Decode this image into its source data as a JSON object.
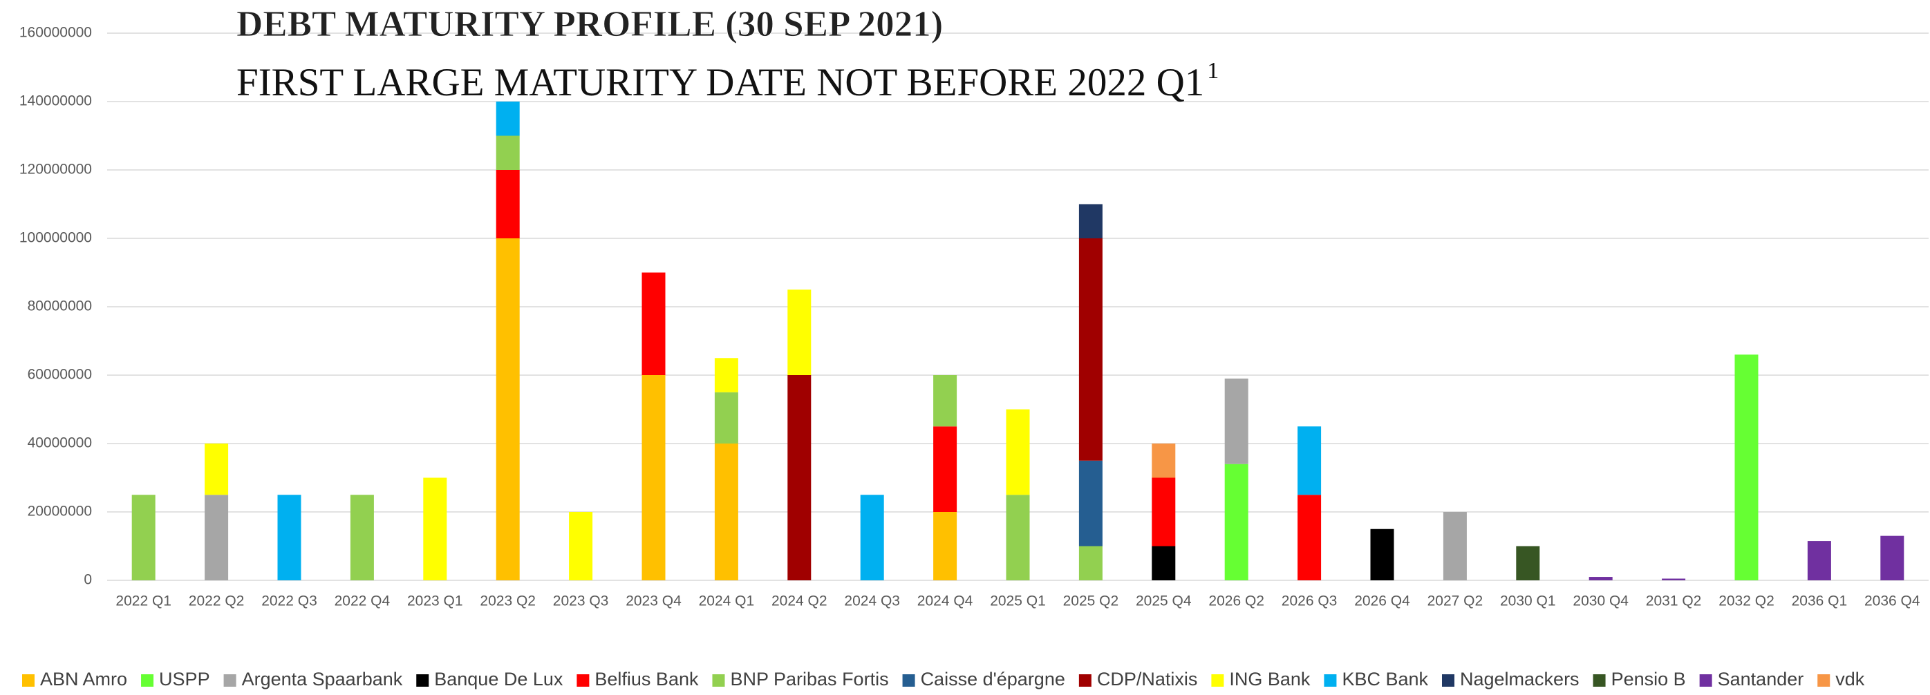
{
  "chart_data": {
    "type": "stacked_bar",
    "title": "DEBT MATURITY PROFILE (30 SEP 2021)",
    "subtitle": "FIRST LARGE MATURITY DATE NOT BEFORE 2022 Q1",
    "subtitle_superscript": "1",
    "categories": [
      "2022 Q1",
      "2022 Q2",
      "2022 Q3",
      "2022 Q4",
      "2023 Q1",
      "2023 Q2",
      "2023 Q3",
      "2023 Q4",
      "2024 Q1",
      "2024 Q2",
      "2024 Q3",
      "2024 Q4",
      "2025 Q1",
      "2025 Q2",
      "2025 Q4",
      "2026 Q2",
      "2026 Q3",
      "2026 Q4",
      "2027 Q2",
      "2030 Q1",
      "2030 Q4",
      "2031 Q2",
      "2032 Q2",
      "2036 Q1",
      "2036 Q4"
    ],
    "series": [
      {
        "name": "ABN Amro",
        "color": "#ffc000",
        "values": [
          null,
          null,
          null,
          null,
          null,
          100000000,
          null,
          60000000,
          40000000,
          null,
          null,
          20000000,
          null,
          null,
          null,
          null,
          null,
          null,
          null,
          null,
          null,
          null,
          null,
          null,
          null
        ]
      },
      {
        "name": "USPP",
        "color": "#66ff33",
        "values": [
          null,
          null,
          null,
          null,
          null,
          null,
          null,
          null,
          null,
          null,
          null,
          null,
          null,
          null,
          null,
          34000000,
          null,
          null,
          null,
          null,
          null,
          null,
          66000000,
          null,
          null
        ]
      },
      {
        "name": "Argenta Spaarbank",
        "color": "#a6a6a6",
        "values": [
          null,
          25000000,
          null,
          null,
          null,
          null,
          null,
          null,
          null,
          null,
          null,
          null,
          null,
          null,
          null,
          25000000,
          null,
          null,
          20000000,
          null,
          null,
          null,
          null,
          null,
          null
        ]
      },
      {
        "name": "Banque De Lux",
        "color": "#000000",
        "values": [
          null,
          null,
          null,
          null,
          null,
          null,
          null,
          null,
          null,
          null,
          null,
          null,
          null,
          null,
          10000000,
          null,
          null,
          15000000,
          null,
          null,
          null,
          null,
          null,
          null,
          null
        ]
      },
      {
        "name": "Belfius Bank",
        "color": "#ff0000",
        "values": [
          null,
          null,
          null,
          null,
          null,
          20000000,
          null,
          30000000,
          null,
          null,
          null,
          25000000,
          null,
          null,
          20000000,
          null,
          25000000,
          null,
          null,
          null,
          null,
          null,
          null,
          null,
          null
        ]
      },
      {
        "name": "BNP Paribas Fortis",
        "color": "#92d050",
        "values": [
          25000000,
          null,
          null,
          25000000,
          null,
          10000000,
          null,
          null,
          15000000,
          null,
          null,
          15000000,
          25000000,
          10000000,
          null,
          null,
          null,
          null,
          null,
          null,
          null,
          null,
          null,
          null,
          null
        ]
      },
      {
        "name": "Caisse d'épargne",
        "color": "#255e91",
        "values": [
          null,
          null,
          null,
          null,
          null,
          null,
          null,
          null,
          null,
          null,
          null,
          null,
          null,
          25000000,
          null,
          null,
          null,
          null,
          null,
          null,
          null,
          null,
          null,
          null,
          null
        ]
      },
      {
        "name": "CDP/Natixis",
        "color": "#a00000",
        "values": [
          null,
          null,
          null,
          null,
          null,
          null,
          null,
          null,
          null,
          60000000,
          null,
          null,
          null,
          65000000,
          null,
          null,
          null,
          null,
          null,
          null,
          null,
          null,
          null,
          null,
          null
        ]
      },
      {
        "name": "ING Bank",
        "color": "#ffff00",
        "values": [
          null,
          15000000,
          null,
          null,
          30000000,
          null,
          20000000,
          null,
          10000000,
          25000000,
          null,
          null,
          25000000,
          null,
          null,
          null,
          null,
          null,
          null,
          null,
          null,
          null,
          null,
          null,
          null
        ]
      },
      {
        "name": "KBC Bank",
        "color": "#00b0f0",
        "values": [
          null,
          null,
          25000000,
          null,
          null,
          10000000,
          null,
          null,
          null,
          null,
          25000000,
          null,
          null,
          null,
          null,
          null,
          20000000,
          null,
          null,
          null,
          null,
          null,
          null,
          null,
          null
        ]
      },
      {
        "name": "Nagelmackers",
        "color": "#203864",
        "values": [
          null,
          null,
          null,
          null,
          null,
          null,
          null,
          null,
          null,
          null,
          null,
          null,
          null,
          10000000,
          null,
          null,
          null,
          null,
          null,
          null,
          null,
          null,
          null,
          null,
          null
        ]
      },
      {
        "name": "Pensio B",
        "color": "#375623",
        "values": [
          null,
          null,
          null,
          null,
          null,
          null,
          null,
          null,
          null,
          null,
          null,
          null,
          null,
          null,
          null,
          null,
          null,
          null,
          null,
          10000000,
          null,
          null,
          null,
          null,
          null
        ]
      },
      {
        "name": "Santander",
        "color": "#7030a0",
        "values": [
          null,
          null,
          null,
          null,
          null,
          null,
          null,
          null,
          null,
          null,
          null,
          null,
          null,
          null,
          null,
          null,
          null,
          null,
          null,
          null,
          1000000,
          500000,
          null,
          11500000,
          13000000
        ]
      },
      {
        "name": "vdk",
        "color": "#f79646",
        "values": [
          null,
          null,
          null,
          null,
          null,
          null,
          null,
          null,
          null,
          null,
          null,
          null,
          null,
          null,
          10000000,
          null,
          null,
          null,
          null,
          null,
          null,
          null,
          null,
          null,
          null
        ]
      }
    ],
    "ylim": [
      0,
      160000000
    ],
    "yticks": [
      0,
      20000000,
      40000000,
      60000000,
      80000000,
      100000000,
      120000000,
      140000000,
      160000000
    ],
    "grid": true,
    "legend": "bottom"
  }
}
